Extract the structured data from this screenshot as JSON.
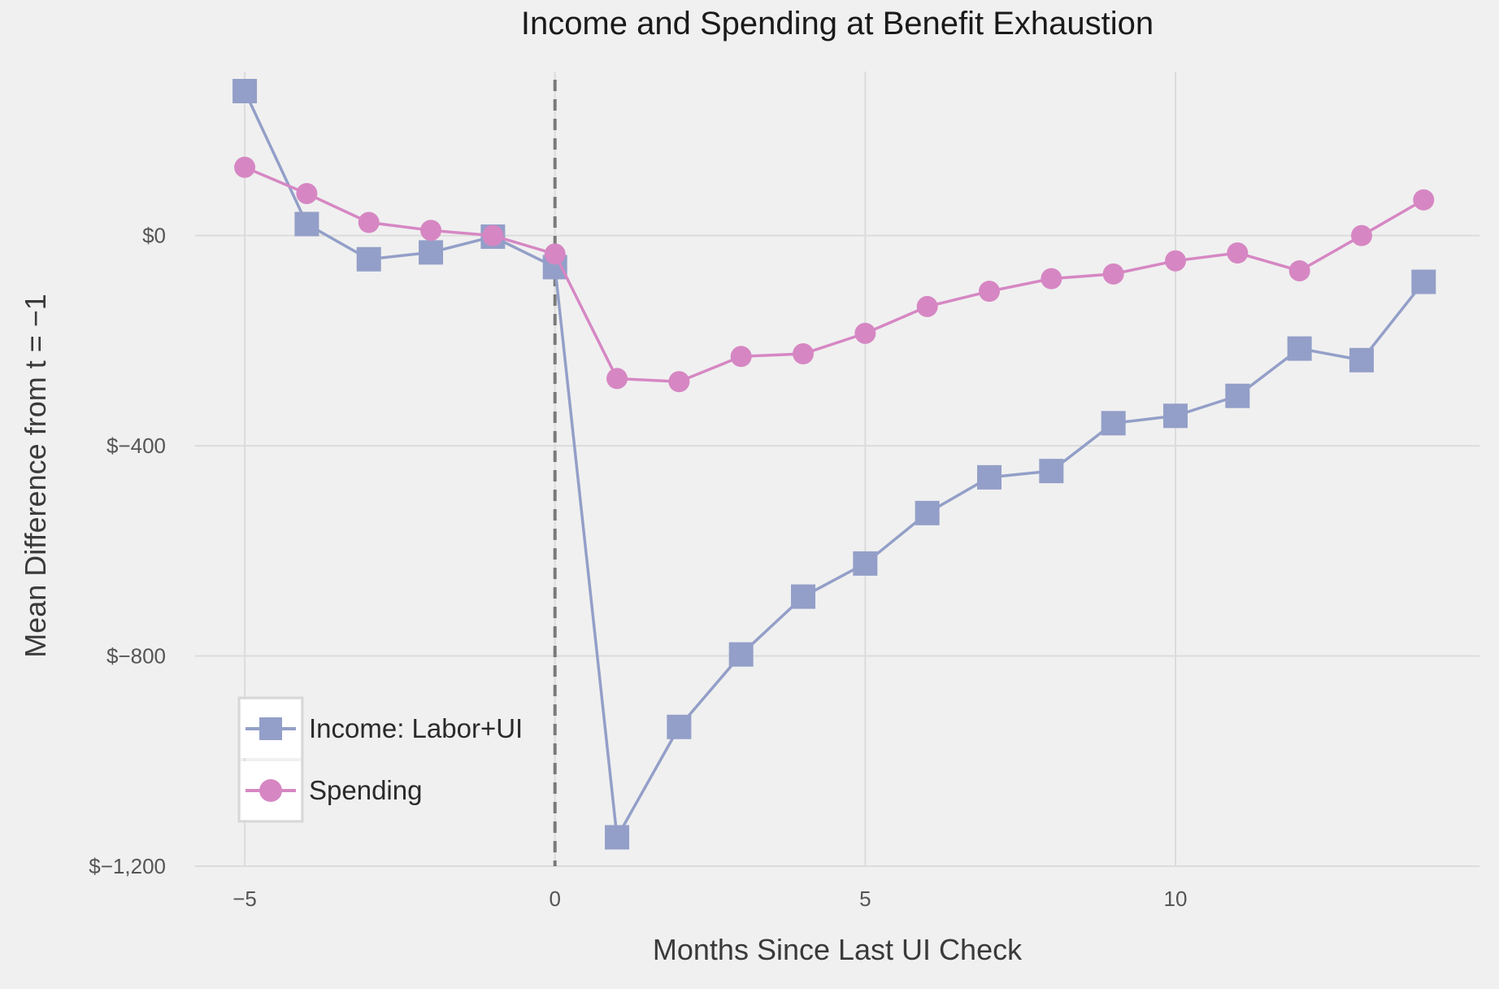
{
  "chart_data": {
    "type": "line",
    "title": "Income and Spending at Benefit Exhaustion",
    "xlabel": "Months Since Last UI Check",
    "ylabel": "Mean Difference from t = −1",
    "x": [
      -5,
      -4,
      -3,
      -2,
      -1,
      0,
      1,
      2,
      3,
      4,
      5,
      6,
      7,
      8,
      9,
      10,
      11,
      12,
      13,
      14
    ],
    "xlim": [
      -5.8,
      14.9
    ],
    "ylim": [
      -1200,
      340
    ],
    "x_ticks": [
      {
        "value": -5,
        "label": "−5"
      },
      {
        "value": 0,
        "label": "0"
      },
      {
        "value": 5,
        "label": "5"
      },
      {
        "value": 10,
        "label": "10"
      }
    ],
    "y_ticks": [
      {
        "value": 0,
        "label": "$0"
      },
      {
        "value": -400,
        "label": "$−400"
      },
      {
        "value": -800,
        "label": "$−800"
      },
      {
        "value": -1200,
        "label": "$−1,200"
      }
    ],
    "vline": {
      "x": 0,
      "style": "dashed"
    },
    "grid": true,
    "legend": {
      "position": "bottom-left"
    },
    "series": [
      {
        "name": "Income: Labor+UI",
        "marker": "square",
        "color": "#939fc8",
        "values": [
          275,
          22,
          -45,
          -32,
          -2,
          -60,
          -1145,
          -935,
          -797,
          -687,
          -624,
          -528,
          -460,
          -448,
          -357,
          -343,
          -305,
          -215,
          -237,
          -88
        ]
      },
      {
        "name": "Spending",
        "marker": "circle",
        "color": "#d687c3",
        "values": [
          130,
          80,
          25,
          10,
          0,
          -35,
          -272,
          -278,
          -230,
          -225,
          -186,
          -135,
          -106,
          -82,
          -73,
          -48,
          -33,
          -67,
          0,
          68
        ]
      }
    ]
  }
}
